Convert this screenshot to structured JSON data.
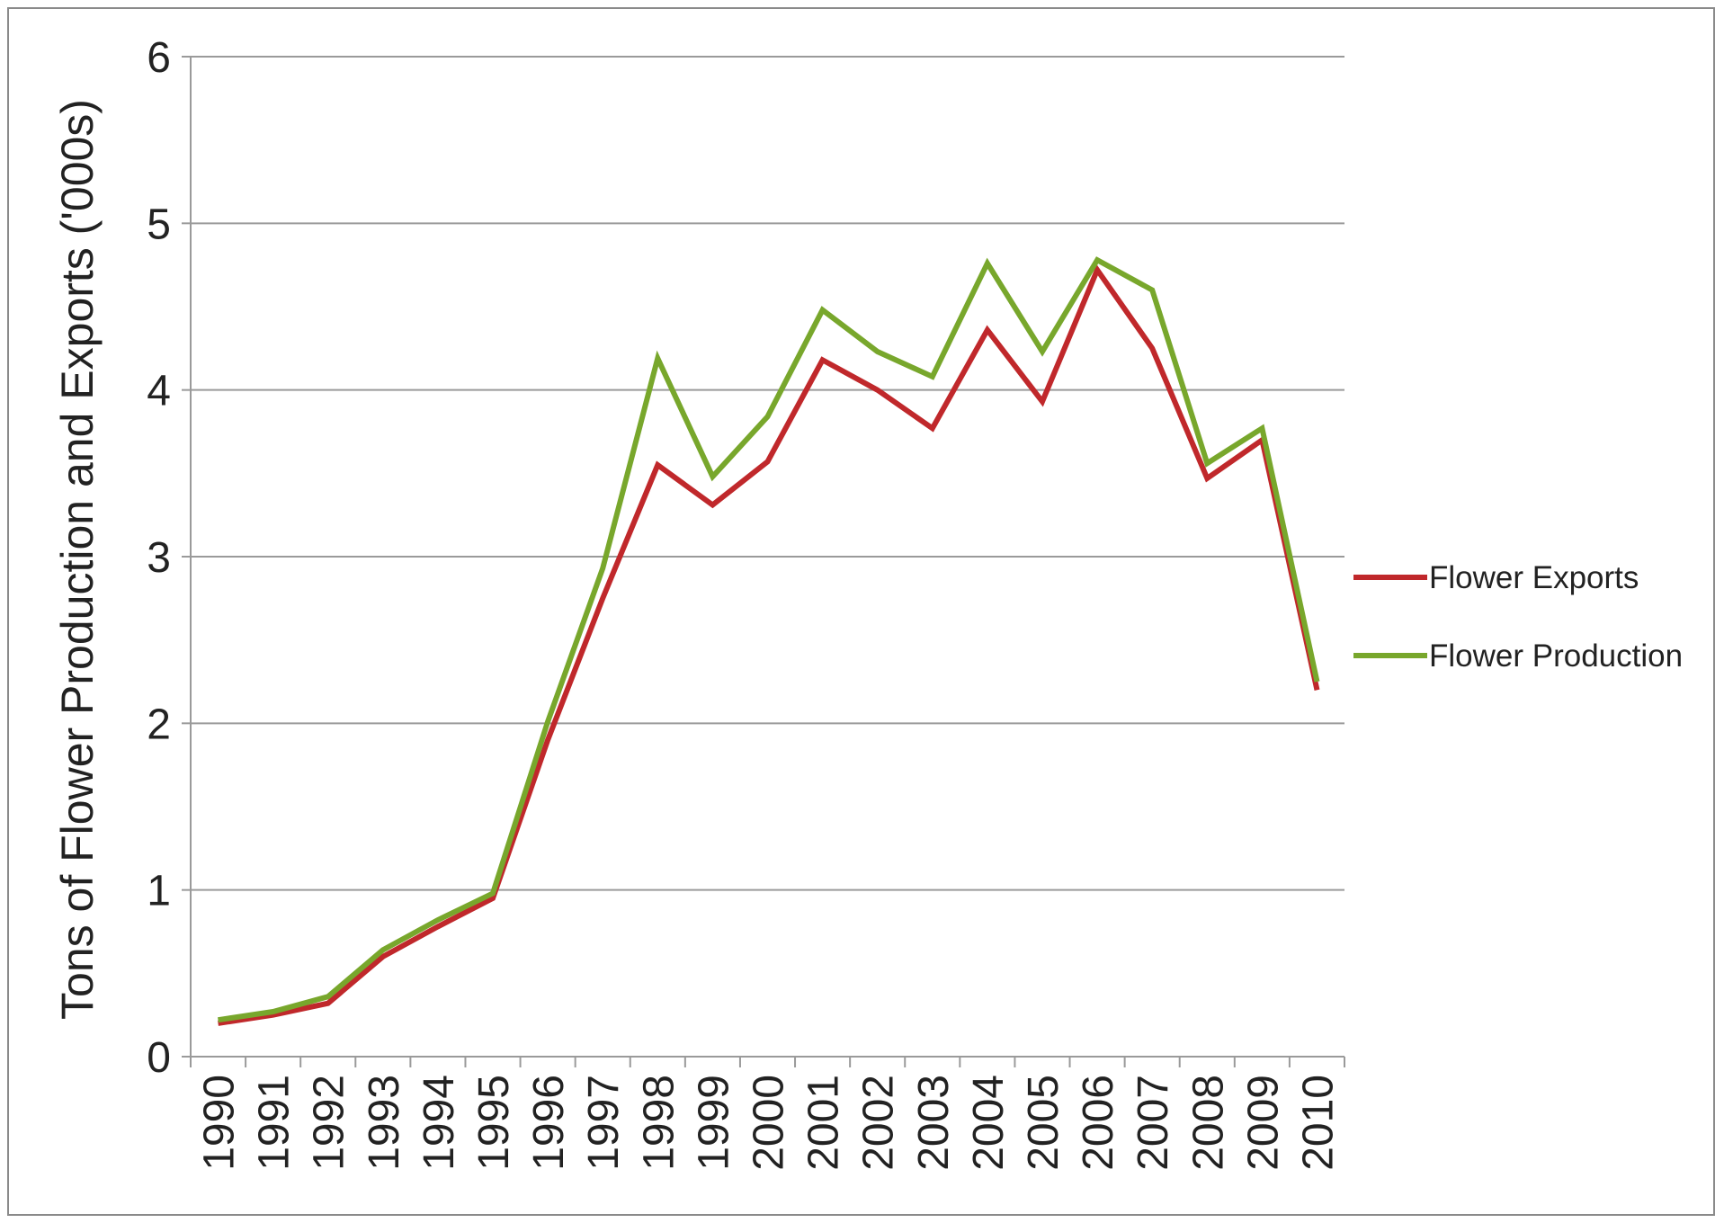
{
  "chart_data": {
    "type": "line",
    "title": "",
    "xlabel": "",
    "ylabel": "Tons of Flower Production and Exports ('000s)",
    "categories": [
      "1990",
      "1991",
      "1992",
      "1993",
      "1994",
      "1995",
      "1996",
      "1997",
      "1998",
      "1999",
      "2000",
      "2001",
      "2002",
      "2003",
      "2004",
      "2005",
      "2006",
      "2007",
      "2008",
      "2009",
      "2010"
    ],
    "ylim": [
      0,
      6
    ],
    "yticks": [
      "0",
      "1",
      "2",
      "3",
      "4",
      "5",
      "6"
    ],
    "grid": true,
    "legend_position": "right",
    "series": [
      {
        "name": "Flower Exports",
        "color": "#c0282b",
        "values": [
          0.2,
          0.25,
          0.32,
          0.6,
          0.78,
          0.95,
          1.9,
          2.75,
          3.55,
          3.31,
          3.57,
          4.18,
          4.0,
          3.77,
          4.36,
          3.93,
          4.72,
          4.25,
          3.47,
          3.7,
          2.2
        ]
      },
      {
        "name": "Flower Production",
        "color": "#78a72c",
        "values": [
          0.22,
          0.27,
          0.36,
          0.64,
          0.82,
          0.98,
          2.01,
          2.93,
          4.19,
          3.48,
          3.84,
          4.48,
          4.23,
          4.08,
          4.76,
          4.23,
          4.78,
          4.6,
          3.56,
          3.77,
          2.25
        ]
      }
    ]
  }
}
